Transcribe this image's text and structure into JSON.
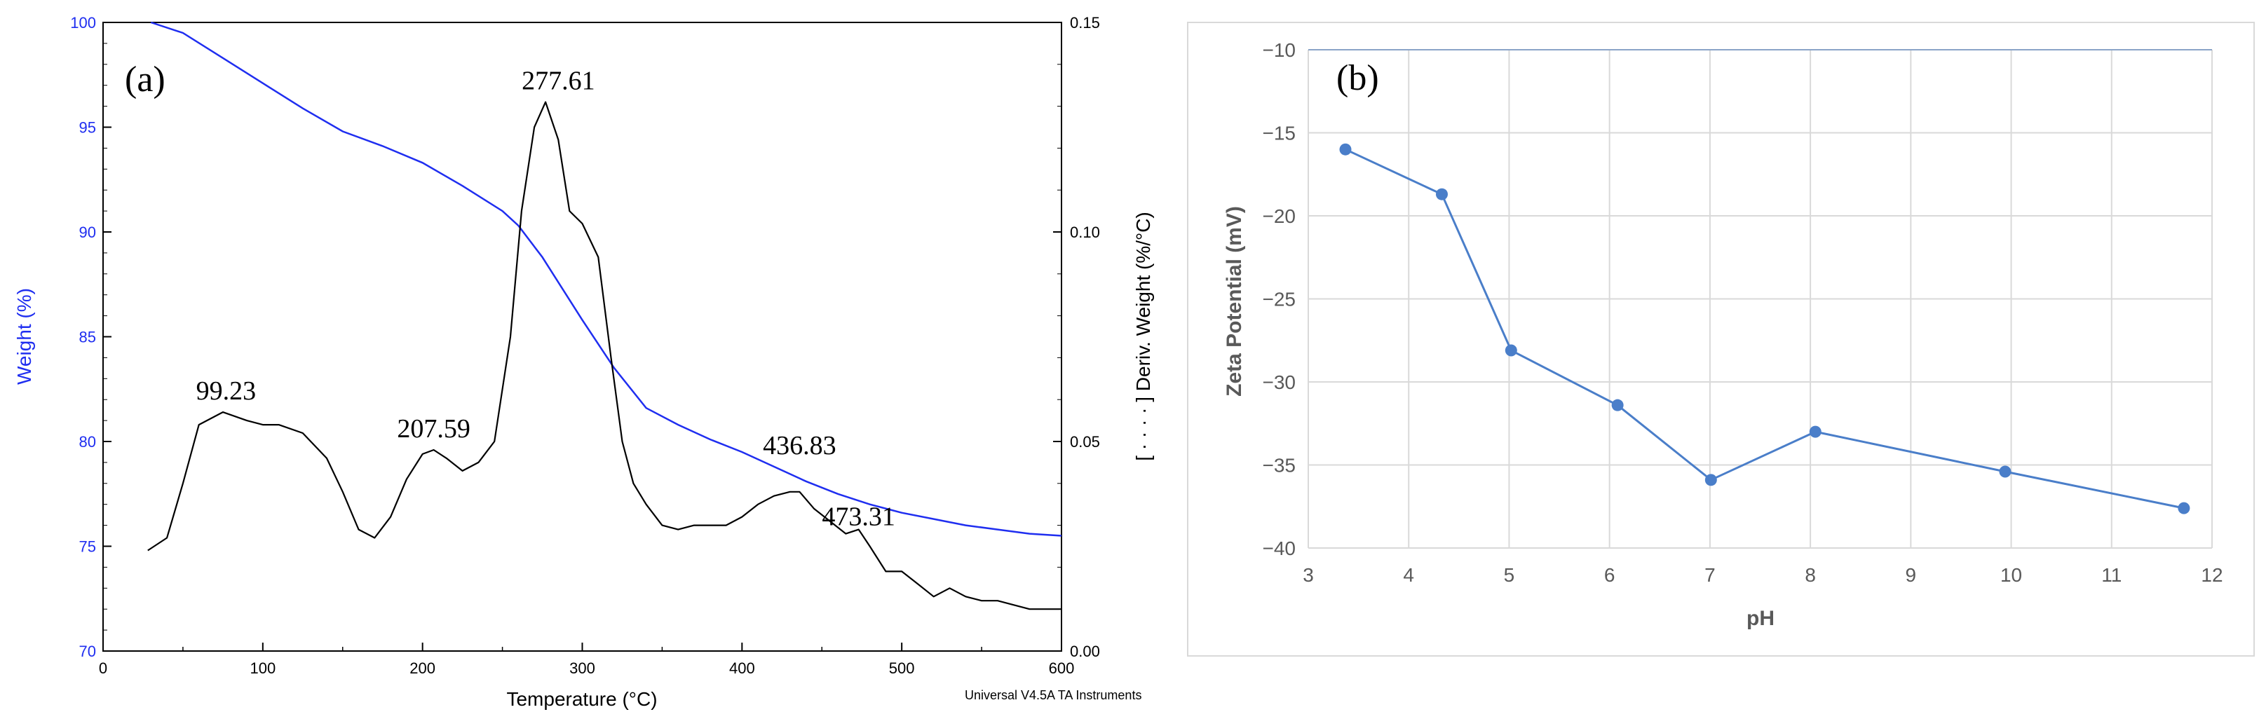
{
  "chart_data": [
    {
      "id": "a",
      "type": "line",
      "panel_label": "(a)",
      "xlabel": "Temperature (°C)",
      "ylabel_left": "Weight (%)",
      "ylabel_right": "[ · · · · ] Deriv. Weight (%/°C)",
      "footer": "Universal V4.5A TA Instruments",
      "xlim": [
        0,
        600
      ],
      "xticks": [
        0,
        100,
        200,
        300,
        400,
        500,
        600
      ],
      "ylim_left": [
        70,
        100
      ],
      "yticks_left": [
        70,
        75,
        80,
        85,
        90,
        95,
        100
      ],
      "ylim_right": [
        0.0,
        0.15
      ],
      "yticks_right": [
        "0.00",
        "0.05",
        "0.10",
        "0.15"
      ],
      "colors": {
        "weight": "#1f2ef0",
        "deriv": "#000000",
        "left_axis": "#1f2ef0"
      },
      "series": [
        {
          "name": "Weight (%)",
          "axis": "left",
          "x": [
            30,
            50,
            75,
            100,
            125,
            150,
            175,
            200,
            225,
            250,
            260,
            275,
            290,
            300,
            320,
            340,
            360,
            380,
            400,
            420,
            440,
            460,
            480,
            500,
            520,
            540,
            560,
            580,
            600
          ],
          "y": [
            100.0,
            99.5,
            98.3,
            97.1,
            95.9,
            94.8,
            94.1,
            93.3,
            92.2,
            91.0,
            90.3,
            88.8,
            87.0,
            85.8,
            83.5,
            81.6,
            80.8,
            80.1,
            79.5,
            78.8,
            78.1,
            77.5,
            77.0,
            76.6,
            76.3,
            76.0,
            75.8,
            75.6,
            75.5
          ]
        },
        {
          "name": "Deriv. Weight (%/°C)",
          "axis": "right",
          "x": [
            28,
            40,
            50,
            60,
            75,
            90,
            100,
            110,
            125,
            140,
            150,
            160,
            170,
            180,
            190,
            200,
            207,
            215,
            225,
            235,
            245,
            255,
            262,
            270,
            277,
            285,
            292,
            300,
            310,
            318,
            325,
            332,
            340,
            350,
            360,
            370,
            380,
            390,
            400,
            410,
            420,
            430,
            436,
            445,
            455,
            465,
            473,
            480,
            490,
            500,
            510,
            520,
            530,
            540,
            550,
            560,
            570,
            580,
            590,
            600
          ],
          "y": [
            0.024,
            0.027,
            0.04,
            0.054,
            0.057,
            0.055,
            0.054,
            0.054,
            0.052,
            0.046,
            0.038,
            0.029,
            0.027,
            0.032,
            0.041,
            0.047,
            0.048,
            0.046,
            0.043,
            0.045,
            0.05,
            0.075,
            0.105,
            0.125,
            0.131,
            0.122,
            0.105,
            0.102,
            0.094,
            0.07,
            0.05,
            0.04,
            0.035,
            0.03,
            0.029,
            0.03,
            0.03,
            0.03,
            0.032,
            0.035,
            0.037,
            0.038,
            0.038,
            0.034,
            0.031,
            0.028,
            0.029,
            0.025,
            0.019,
            0.019,
            0.016,
            0.013,
            0.015,
            0.013,
            0.012,
            0.012,
            0.011,
            0.01,
            0.01,
            0.01
          ]
        }
      ],
      "annotations": [
        {
          "text": "99.23",
          "x": 77,
          "y": 0.06
        },
        {
          "text": "207.59",
          "x": 207,
          "y": 0.051
        },
        {
          "text": "277.61",
          "x": 285,
          "y": 0.134
        },
        {
          "text": "436.83",
          "x": 436,
          "y": 0.047
        },
        {
          "text": "473.31",
          "x": 473,
          "y": 0.03
        }
      ]
    },
    {
      "id": "b",
      "type": "line",
      "panel_label": "(b)",
      "xlabel": "pH",
      "ylabel": "Zeta Potential (mV)",
      "xlim": [
        3,
        12
      ],
      "xticks": [
        3,
        4,
        5,
        6,
        7,
        8,
        9,
        10,
        11,
        12
      ],
      "ylim": [
        -40,
        -10
      ],
      "yticks": [
        -40,
        -35,
        -30,
        -25,
        -20,
        -15,
        -10
      ],
      "grid": true,
      "colors": {
        "line": "#4a7ec9",
        "grid": "#d9d9d9",
        "text": "#595959"
      },
      "series": [
        {
          "name": "Zeta Potential",
          "x": [
            3.37,
            4.33,
            5.02,
            6.08,
            7.01,
            8.05,
            9.94,
            11.72
          ],
          "y": [
            -16.0,
            -18.7,
            -28.1,
            -31.4,
            -35.9,
            -33.0,
            -35.4,
            -37.6
          ]
        }
      ]
    }
  ]
}
